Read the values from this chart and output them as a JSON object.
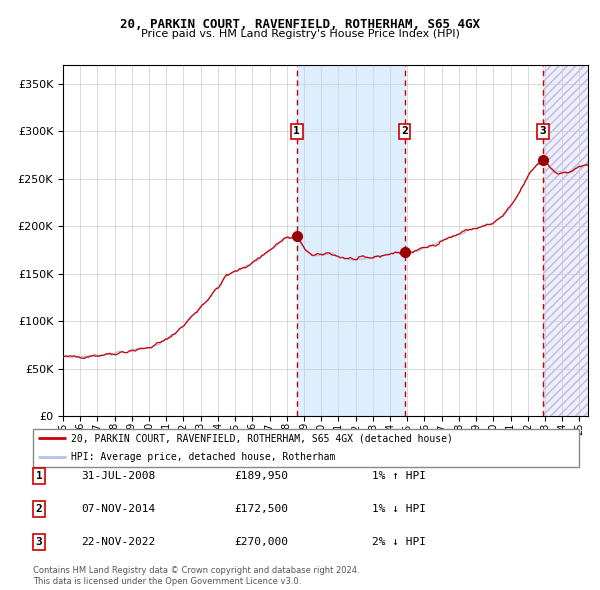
{
  "title": "20, PARKIN COURT, RAVENFIELD, ROTHERHAM, S65 4GX",
  "subtitle": "Price paid vs. HM Land Registry's House Price Index (HPI)",
  "legend_line1": "20, PARKIN COURT, RAVENFIELD, ROTHERHAM, S65 4GX (detached house)",
  "legend_line2": "HPI: Average price, detached house, Rotherham",
  "table_rows": [
    {
      "num": "1",
      "date": "31-JUL-2008",
      "price": "£189,950",
      "change": "1% ↑ HPI"
    },
    {
      "num": "2",
      "date": "07-NOV-2014",
      "price": "£172,500",
      "change": "1% ↓ HPI"
    },
    {
      "num": "3",
      "date": "22-NOV-2022",
      "price": "£270,000",
      "change": "2% ↓ HPI"
    }
  ],
  "footer": "Contains HM Land Registry data © Crown copyright and database right 2024.\nThis data is licensed under the Open Government Licence v3.0.",
  "hpi_color": "#aec6e8",
  "price_color": "#cc0000",
  "dot_color": "#990000",
  "shading_color": "#ddeeff",
  "vline_color": "#cc0000",
  "grid_color": "#cccccc",
  "background_color": "#ffffff",
  "ylim": [
    0,
    370000
  ],
  "xlim_start": 1995.0,
  "xlim_end": 2025.5,
  "sale1_x": 2008.58,
  "sale2_x": 2014.85,
  "sale3_x": 2022.9,
  "sale1_y": 189950,
  "sale2_y": 172500,
  "sale3_y": 270000
}
